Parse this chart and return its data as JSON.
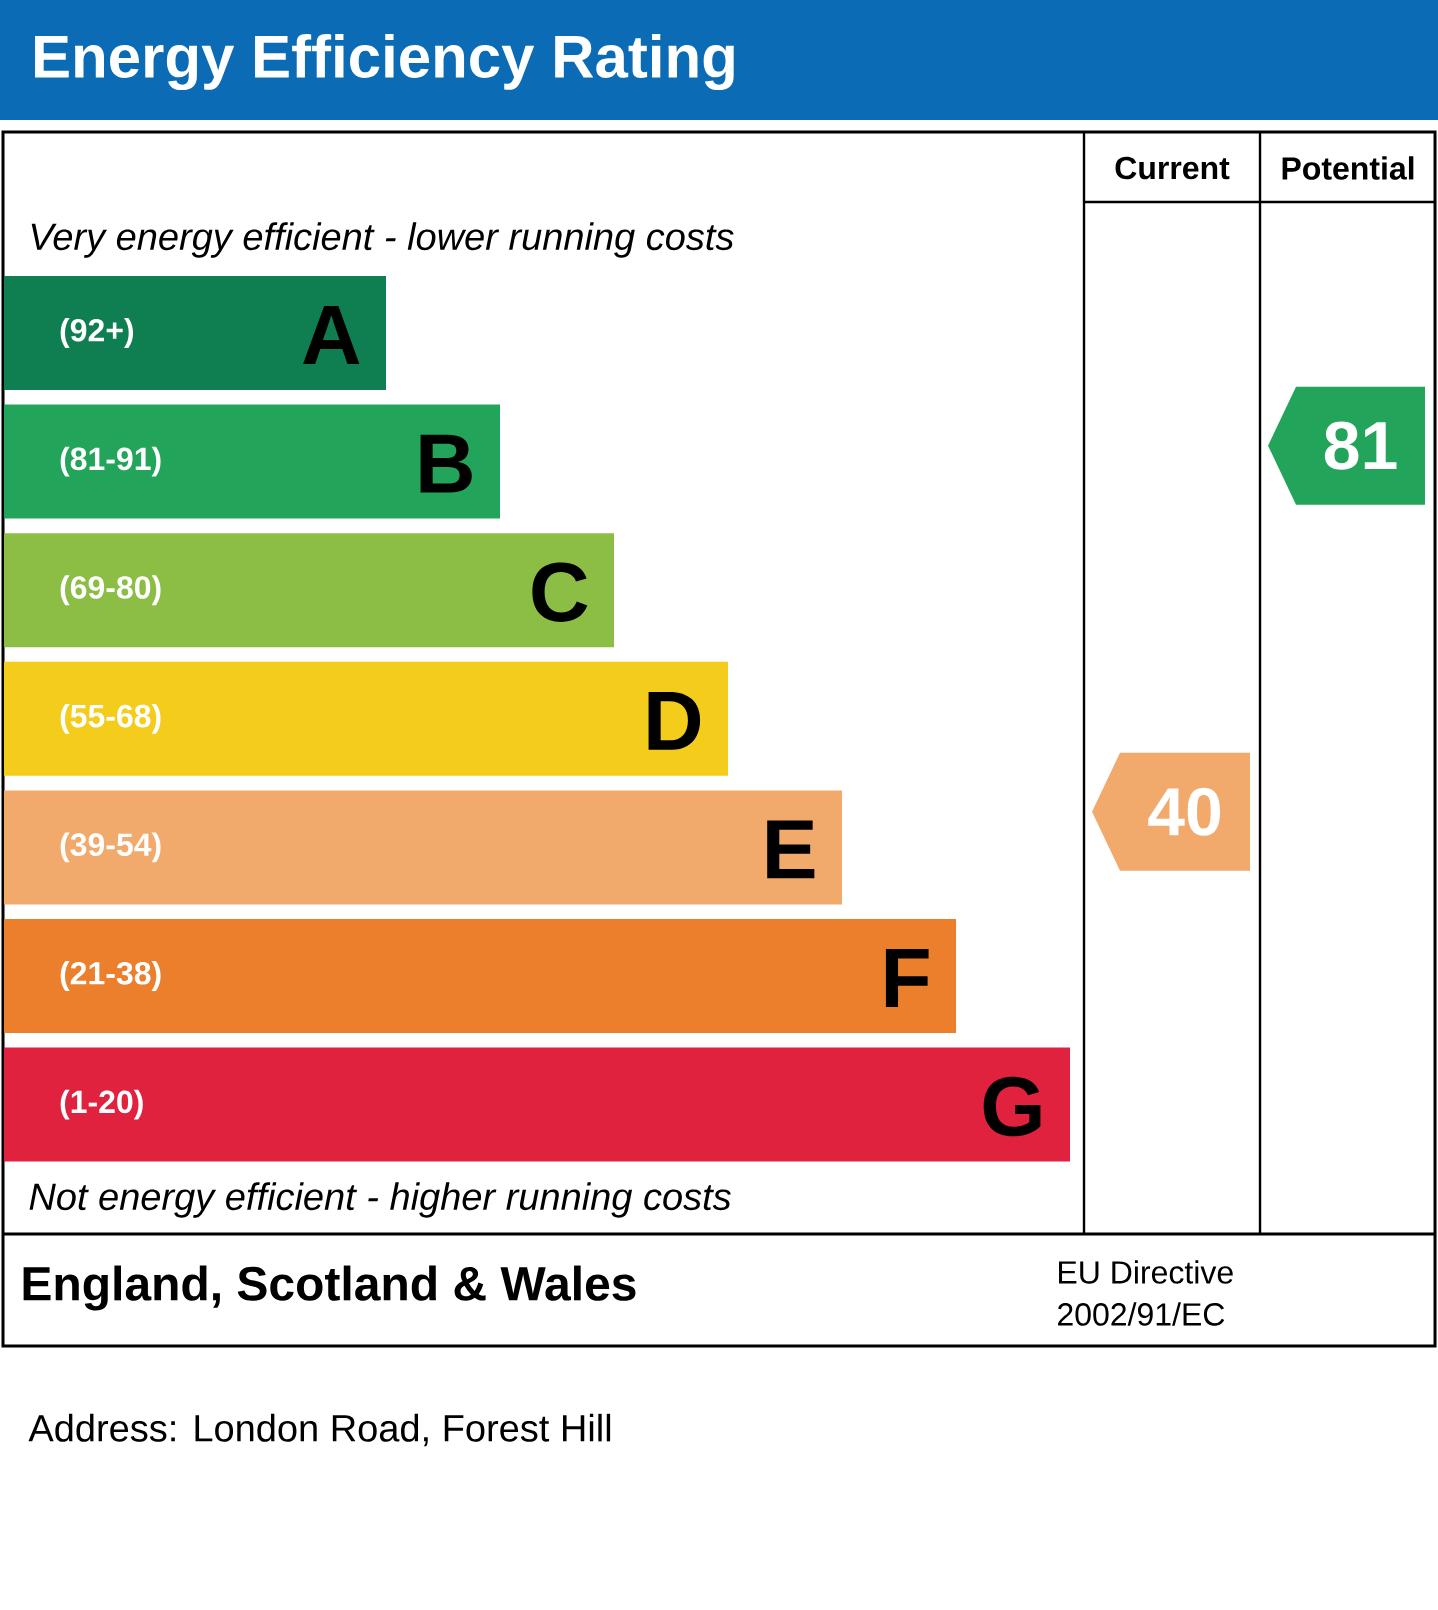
{
  "chart_data": {
    "type": "other",
    "title": "Energy Efficiency Rating",
    "categories": [
      "A",
      "B",
      "C",
      "D",
      "E",
      "F",
      "G"
    ],
    "value_labels": [
      "(92+)",
      "(81-91)",
      "(69-80)",
      "(55-68)",
      "(39-54)",
      "(21-38)",
      "(1-20)"
    ],
    "colors": [
      "#0f7f52",
      "#22a55a",
      "#8cbd45",
      "#f4cc1b",
      "#f2aa6c",
      "#eb7f2c",
      "#e0223e"
    ],
    "series": [
      {
        "values": [
          null,
          null,
          null,
          null,
          40,
          null,
          null
        ],
        "value_labels": [
          null,
          null,
          null,
          null,
          "40",
          null,
          null
        ]
      },
      {
        "values": [
          null,
          81,
          null,
          null,
          null,
          null,
          null
        ],
        "value_labels": [
          null,
          "81",
          null,
          null,
          null,
          null,
          null
        ]
      }
    ],
    "annotations": [
      "Very energy efficient - lower running costs",
      "Not energy efficient - higher running costs",
      "England, Scotland & Wales",
      "EU Directive",
      "2002/91/EC",
      "Address: London Road, Forest Hill",
      "Current",
      "Potential"
    ]
  }
}
